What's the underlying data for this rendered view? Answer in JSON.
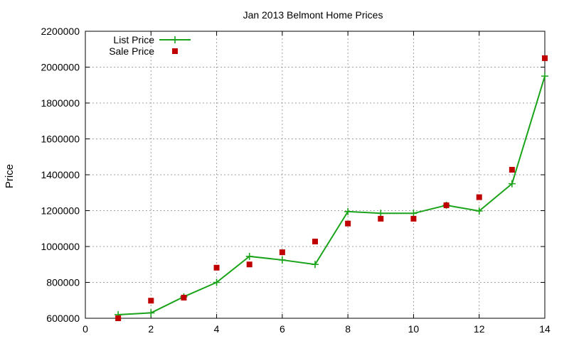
{
  "chart_data": {
    "type": "line",
    "title": "Jan 2013 Belmont Home Prices",
    "xlabel": "",
    "ylabel": "Price",
    "xlim": [
      0,
      14
    ],
    "ylim": [
      600000,
      2200000
    ],
    "x_ticks": [
      "0",
      "2",
      "4",
      "6",
      "8",
      "10",
      "12",
      "14"
    ],
    "y_ticks": [
      "600000",
      "800000",
      "1000000",
      "1200000",
      "1400000",
      "1600000",
      "1800000",
      "2000000",
      "2200000"
    ],
    "grid": true,
    "legend_position": "top-left",
    "series": [
      {
        "name": "List Price",
        "style": "line-with-plus-markers",
        "color": "#1aa31a",
        "x": [
          1,
          2,
          3,
          4,
          5,
          6,
          7,
          8,
          9,
          10,
          11,
          12,
          13,
          14
        ],
        "y": [
          620000,
          630000,
          720000,
          800000,
          945000,
          925000,
          900000,
          1195000,
          1185000,
          1185000,
          1230000,
          1198000,
          1350000,
          1950000
        ]
      },
      {
        "name": "Sale Price",
        "style": "square-markers",
        "color": "#c00000",
        "x": [
          1,
          2,
          3,
          4,
          5,
          6,
          7,
          8,
          9,
          10,
          11,
          12,
          13,
          14
        ],
        "y": [
          600000,
          698000,
          715000,
          882000,
          900000,
          968000,
          1028000,
          1128000,
          1155000,
          1155000,
          1230000,
          1275000,
          1428000,
          2050000
        ]
      }
    ]
  }
}
